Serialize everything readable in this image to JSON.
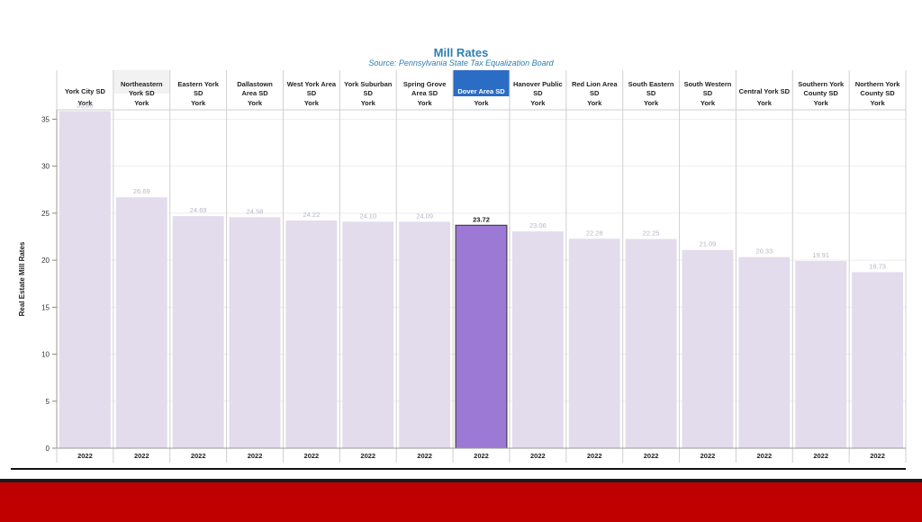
{
  "chart_data": {
    "type": "bar",
    "title": "Mill Rates",
    "subtitle": "Source: Pennsylvania State Tax Equalization Board",
    "ylabel": "Real Estate Mill Rates",
    "ylim": [
      0,
      36
    ],
    "yticks": [
      0,
      5,
      10,
      15,
      20,
      25,
      30,
      35
    ],
    "highlight_index": 7,
    "colors": {
      "bar": "#e2dcec",
      "bar_highlight": "#9b79d4",
      "header_highlight": "#2b6cc4",
      "header_alt": "#f2f2f2",
      "grid": "#eeeeee",
      "label": "#b5b5c8",
      "label_highlight": "#222222"
    },
    "bars": [
      {
        "district": [
          "York City SD"
        ],
        "county": "York",
        "year": "2022",
        "value": 35.86
      },
      {
        "district": [
          "Northeastern",
          "York SD"
        ],
        "county": "York",
        "year": "2022",
        "value": 26.69
      },
      {
        "district": [
          "Eastern York",
          "SD"
        ],
        "county": "York",
        "year": "2022",
        "value": 24.69
      },
      {
        "district": [
          "Dallastown",
          "Area SD"
        ],
        "county": "York",
        "year": "2022",
        "value": 24.58
      },
      {
        "district": [
          "West York Area",
          "SD"
        ],
        "county": "York",
        "year": "2022",
        "value": 24.22
      },
      {
        "district": [
          "York Suburban",
          "SD"
        ],
        "county": "York",
        "year": "2022",
        "value": 24.1
      },
      {
        "district": [
          "Spring Grove",
          "Area SD"
        ],
        "county": "York",
        "year": "2022",
        "value": 24.09
      },
      {
        "district": [
          "Dover Area SD"
        ],
        "county": "York",
        "year": "2022",
        "value": 23.72
      },
      {
        "district": [
          "Hanover Public",
          "SD"
        ],
        "county": "York",
        "year": "2022",
        "value": 23.06
      },
      {
        "district": [
          "Red Lion Area",
          "SD"
        ],
        "county": "York",
        "year": "2022",
        "value": 22.28
      },
      {
        "district": [
          "South Eastern",
          "SD"
        ],
        "county": "York",
        "year": "2022",
        "value": 22.25
      },
      {
        "district": [
          "South Western",
          "SD"
        ],
        "county": "York",
        "year": "2022",
        "value": 21.09
      },
      {
        "district": [
          "Central York SD"
        ],
        "county": "York",
        "year": "2022",
        "value": 20.33
      },
      {
        "district": [
          "Southern York",
          "County SD"
        ],
        "county": "York",
        "year": "2022",
        "value": 19.91
      },
      {
        "district": [
          "Northern York",
          "County SD"
        ],
        "county": "York",
        "year": "2022",
        "value": 18.73
      }
    ]
  }
}
